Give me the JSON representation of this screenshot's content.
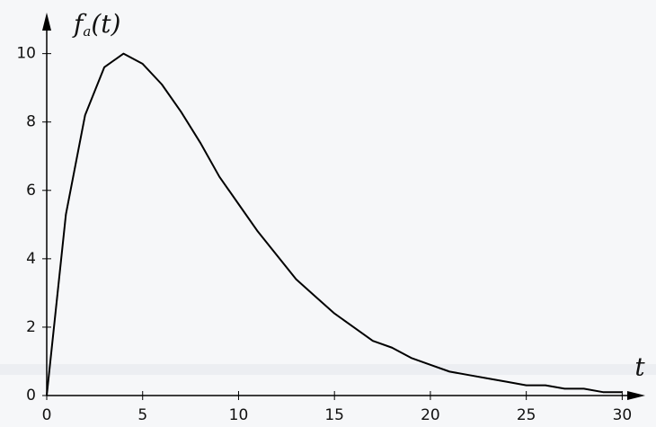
{
  "chart_data": {
    "type": "line",
    "y_label": {
      "symbol": "f",
      "subscript": "a",
      "argument": "(t)"
    },
    "x_label": "t",
    "x": [
      0,
      1,
      2,
      3,
      4,
      5,
      6,
      7,
      8,
      9,
      10,
      11,
      12,
      13,
      14,
      15,
      16,
      17,
      18,
      19,
      20,
      21,
      22,
      23,
      24,
      25,
      26,
      27,
      28,
      29,
      30
    ],
    "values": [
      0,
      5.3,
      8.2,
      9.6,
      10,
      9.7,
      9.1,
      8.3,
      7.4,
      6.4,
      5.6,
      4.8,
      4.1,
      3.4,
      2.9,
      2.4,
      2.0,
      1.6,
      1.4,
      1.1,
      0.9,
      0.7,
      0.6,
      0.5,
      0.4,
      0.3,
      0.3,
      0.2,
      0.2,
      0.1,
      0.1
    ],
    "color": "#000000",
    "xlim": [
      0,
      31.2
    ],
    "xticks": [
      0,
      5,
      10,
      15,
      20,
      25,
      30
    ],
    "ylim": [
      0,
      11.2
    ],
    "yticks": [
      0,
      2,
      4,
      6,
      8,
      10
    ],
    "grid": false
  }
}
